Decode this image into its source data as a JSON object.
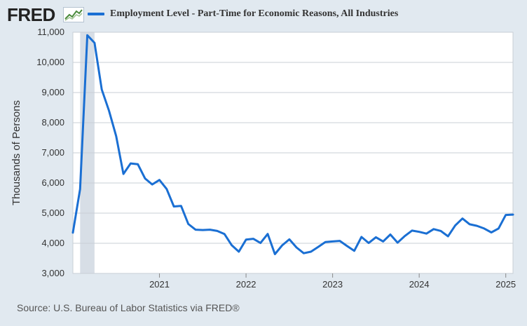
{
  "header": {
    "logo_text": "FRED",
    "legend_label": "Employment Level - Part-Time for Economic Reasons, All Industries",
    "series_color": "#1a6fd3"
  },
  "footer": {
    "source": "Source: U.S. Bureau of Labor Statistics via FRED®"
  },
  "chart_data": {
    "type": "line",
    "title": "",
    "xlabel": "",
    "ylabel": "Thousands of Persons",
    "ylim": [
      3000,
      11000
    ],
    "yticks": [
      3000,
      4000,
      5000,
      6000,
      7000,
      8000,
      9000,
      10000,
      11000
    ],
    "ytick_labels": [
      "3,000",
      "4,000",
      "5,000",
      "6,000",
      "7,000",
      "8,000",
      "9,000",
      "10,000",
      "11,000"
    ],
    "xlim": [
      "2020-01",
      "2025-02"
    ],
    "xticks": [
      "2021-01",
      "2022-01",
      "2023-01",
      "2024-01",
      "2025-01"
    ],
    "xtick_labels": [
      "2021",
      "2022",
      "2023",
      "2024",
      "2025"
    ],
    "grid": true,
    "recession_shading": [
      "2020-02",
      "2020-04"
    ],
    "series": [
      {
        "name": "Employment Level - Part-Time for Economic Reasons, All Industries",
        "x": [
          "2020-01",
          "2020-02",
          "2020-03",
          "2020-04",
          "2020-05",
          "2020-06",
          "2020-07",
          "2020-08",
          "2020-09",
          "2020-10",
          "2020-11",
          "2020-12",
          "2021-01",
          "2021-02",
          "2021-03",
          "2021-04",
          "2021-05",
          "2021-06",
          "2021-07",
          "2021-08",
          "2021-09",
          "2021-10",
          "2021-11",
          "2021-12",
          "2022-01",
          "2022-02",
          "2022-03",
          "2022-04",
          "2022-05",
          "2022-06",
          "2022-07",
          "2022-08",
          "2022-09",
          "2022-10",
          "2022-11",
          "2022-12",
          "2023-01",
          "2023-02",
          "2023-03",
          "2023-04",
          "2023-05",
          "2023-06",
          "2023-07",
          "2023-08",
          "2023-09",
          "2023-10",
          "2023-11",
          "2023-12",
          "2024-01",
          "2024-02",
          "2024-03",
          "2024-04",
          "2024-05",
          "2024-06",
          "2024-07",
          "2024-08",
          "2024-09",
          "2024-10",
          "2024-11",
          "2024-12",
          "2025-01",
          "2025-02"
        ],
        "values": [
          4350,
          5800,
          10900,
          10650,
          9100,
          8400,
          7550,
          6300,
          6650,
          6620,
          6150,
          5950,
          6100,
          5800,
          5220,
          5240,
          4640,
          4450,
          4440,
          4450,
          4410,
          4310,
          3940,
          3720,
          4120,
          4150,
          4010,
          4310,
          3640,
          3930,
          4130,
          3860,
          3670,
          3720,
          3880,
          4040,
          4060,
          4080,
          3910,
          3750,
          4210,
          4010,
          4200,
          4060,
          4290,
          4020,
          4240,
          4420,
          4380,
          4320,
          4470,
          4410,
          4230,
          4590,
          4820,
          4630,
          4580,
          4490,
          4360,
          4490,
          4940,
          4950
        ]
      }
    ]
  }
}
